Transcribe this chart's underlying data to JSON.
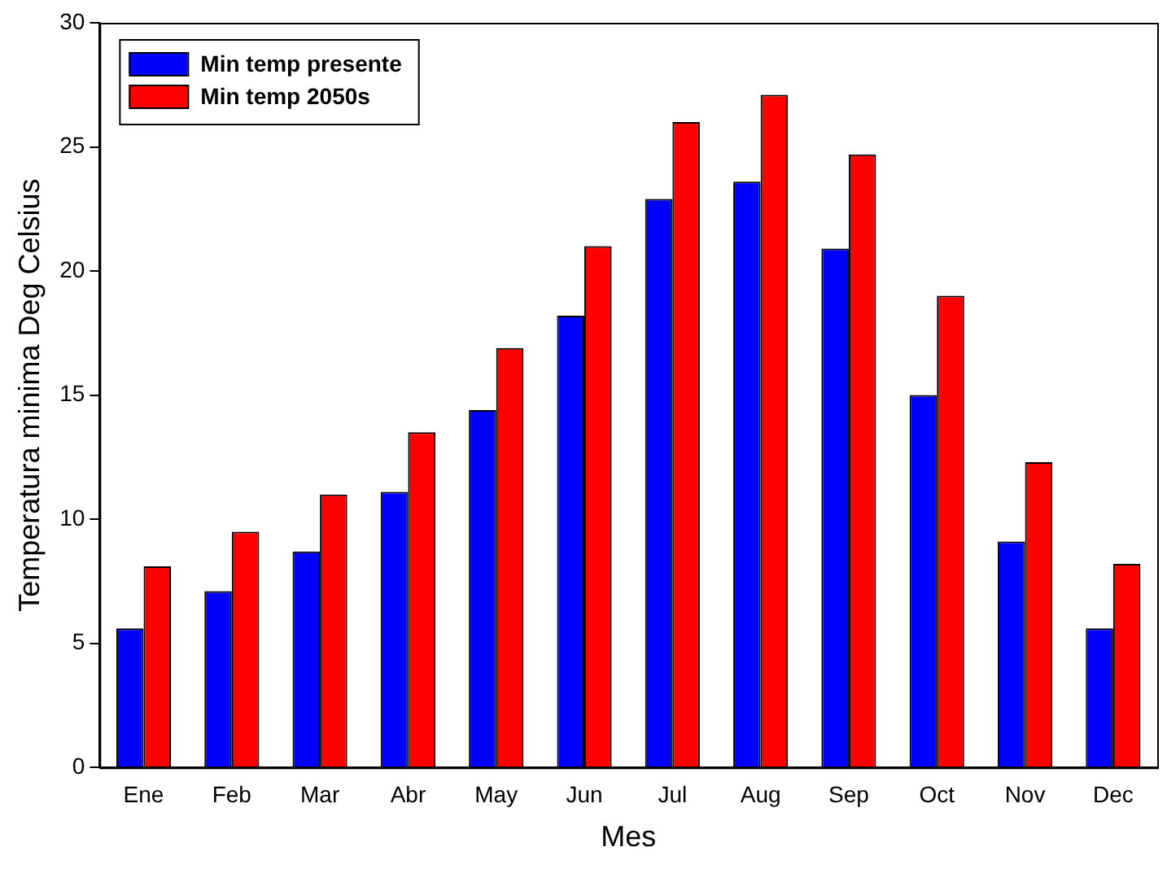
{
  "chart_data": {
    "type": "bar",
    "xlabel": "Mes",
    "ylabel": "Temperatura minima Deg Celsius",
    "categories": [
      "Ene",
      "Feb",
      "Mar",
      "Abr",
      "May",
      "Jun",
      "Jul",
      "Aug",
      "Sep",
      "Oct",
      "Nov",
      "Dec"
    ],
    "series": [
      {
        "name": "Min temp presente",
        "color": "#0000ff",
        "values": [
          5.6,
          7.1,
          8.7,
          11.1,
          14.4,
          18.2,
          22.9,
          23.6,
          20.9,
          15.0,
          9.1,
          5.6
        ]
      },
      {
        "name": "Min temp 2050s",
        "color": "#ff0000",
        "values": [
          8.1,
          9.5,
          11.0,
          13.5,
          16.9,
          21.0,
          26.0,
          27.1,
          24.7,
          19.0,
          12.3,
          8.2
        ]
      }
    ],
    "ylim": [
      0,
      30
    ],
    "yticks": [
      0,
      5,
      10,
      15,
      20,
      25,
      30
    ],
    "grid": false,
    "legend": "top left"
  }
}
